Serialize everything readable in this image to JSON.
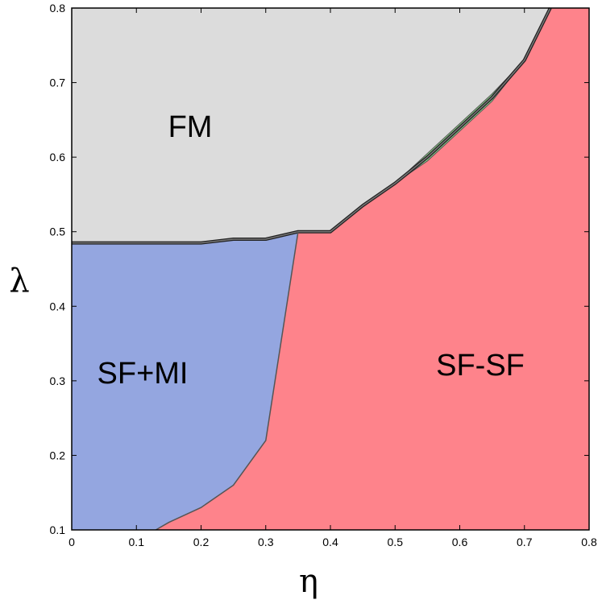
{
  "chart_data": {
    "type": "area",
    "title": "",
    "xlabel": "η",
    "ylabel": "λ",
    "xlim": [
      0,
      0.8
    ],
    "ylim": [
      0.1,
      0.8
    ],
    "xticks": [
      "0",
      "0.1",
      "0.2",
      "0.3",
      "0.4",
      "0.5",
      "0.6",
      "0.7",
      "0.8"
    ],
    "yticks": [
      "0.1",
      "0.2",
      "0.3",
      "0.4",
      "0.5",
      "0.6",
      "0.7",
      "0.8"
    ],
    "grid": false,
    "regions": [
      {
        "name": "FM",
        "color": "#dcdcdc"
      },
      {
        "name": "SF+MI",
        "color": "#94a6e0"
      },
      {
        "name": "SF-SF",
        "color": "#fe838b"
      }
    ],
    "fm_boundary": {
      "x": [
        0,
        0.1,
        0.2,
        0.25,
        0.3,
        0.35,
        0.4,
        0.45,
        0.5,
        0.55,
        0.6,
        0.65,
        0.7,
        0.74
      ],
      "y": [
        0.485,
        0.485,
        0.485,
        0.49,
        0.49,
        0.5,
        0.5,
        0.535,
        0.565,
        0.6,
        0.64,
        0.68,
        0.73,
        0.8
      ]
    },
    "sfmi_sfsf_boundary": {
      "x": [
        0.13,
        0.15,
        0.2,
        0.25,
        0.3,
        0.35
      ],
      "y": [
        0.1,
        0.11,
        0.13,
        0.16,
        0.22,
        0.5
      ]
    },
    "green_sliver": {
      "x": [
        0.5,
        0.55,
        0.6,
        0.65,
        0.7
      ],
      "upper": [
        0.565,
        0.605,
        0.645,
        0.685,
        0.73
      ],
      "lower": [
        0.565,
        0.595,
        0.635,
        0.675,
        0.73
      ],
      "color": "#8fd98f"
    }
  }
}
